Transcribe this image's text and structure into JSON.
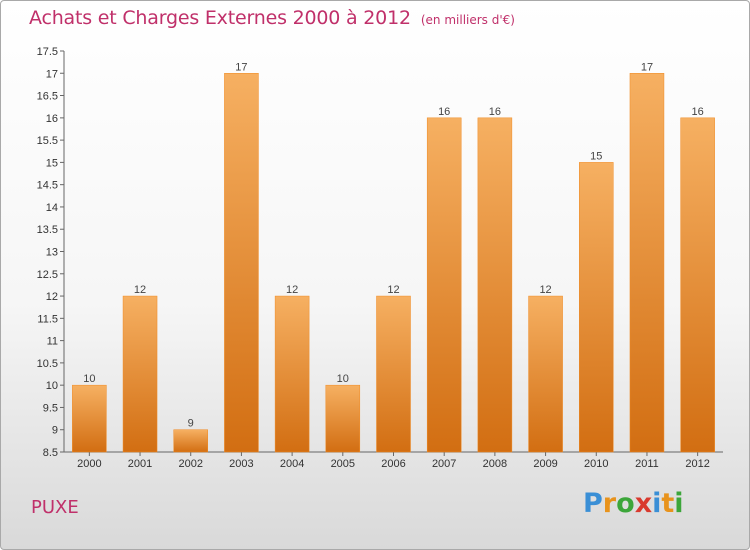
{
  "page": {
    "title": "Achats et Charges Externes 2000 à 2012",
    "unit_note": "(en milliers d'€)",
    "commune": "PUXE",
    "logo": {
      "letters": [
        "P",
        "r",
        "o",
        "x",
        "i",
        "t",
        "i"
      ],
      "colors": [
        "#3a8fd6",
        "#e8931c",
        "#3ca63a",
        "#d93a2e",
        "#3a8fd6",
        "#e8931c",
        "#3ca63a"
      ]
    }
  },
  "colors": {
    "bar": "#f08a22",
    "bar_light": "#f6b062",
    "bar_dark": "#d26e12",
    "title": "#c0306a"
  },
  "chart_data": {
    "type": "bar",
    "title": "Achats et Charges Externes 2000 à 2012",
    "subtitle": "(en milliers d'€)",
    "xlabel": "",
    "ylabel": "",
    "categories": [
      "2000",
      "2001",
      "2002",
      "2003",
      "2004",
      "2005",
      "2006",
      "2007",
      "2008",
      "2009",
      "2010",
      "2011",
      "2012"
    ],
    "values": [
      10,
      12,
      9,
      17,
      12,
      10,
      12,
      16,
      16,
      12,
      15,
      17,
      16
    ],
    "data_labels": [
      "10",
      "12",
      "9",
      "17",
      "12",
      "10",
      "12",
      "16",
      "16",
      "12",
      "15",
      "17",
      "16"
    ],
    "ylim": [
      8.5,
      17.5
    ],
    "yticks": [
      8.5,
      9,
      9.5,
      10,
      10.5,
      11,
      11.5,
      12,
      12.5,
      13,
      13.5,
      14,
      14.5,
      15,
      15.5,
      16,
      16.5,
      17,
      17.5
    ],
    "ytick_labels": [
      "8.5",
      "9",
      "9.5",
      "10",
      "10.5",
      "11",
      "11.5",
      "12",
      "12.5",
      "13",
      "13.5",
      "14",
      "14.5",
      "15",
      "15.5",
      "16",
      "16.5",
      "17",
      "17.5"
    ],
    "grid": false,
    "legend": "none"
  }
}
